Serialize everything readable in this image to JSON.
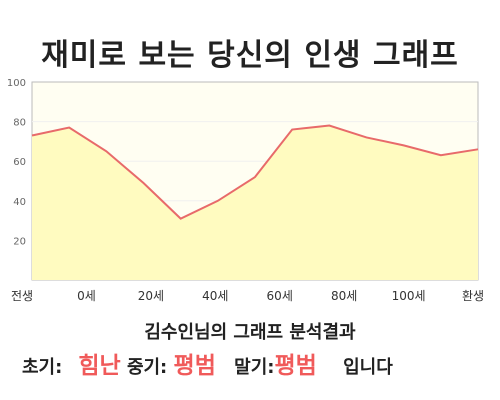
{
  "title": "재미로 보는 당신의 인생 그래프",
  "subtitle": "김수인님의 그래프 분석결과",
  "result": {
    "early_label": "초기:",
    "early_value": "힘난",
    "mid_label": "중기:",
    "mid_value": "평범",
    "late_label": "말기:",
    "late_value": "평범",
    "suffix": "입니다"
  },
  "colors": {
    "line": "#e86a6a",
    "fill": "#fffbc0",
    "plot_bg": "#fffef2",
    "grid": "#f0f0f0",
    "highlight": "#f05a5a"
  },
  "chart_data": {
    "type": "area",
    "title": "재미로 보는 당신의 인생 그래프",
    "x_tick_labels": [
      "전생",
      "0세",
      "20세",
      "40세",
      "60세",
      "80세",
      "100세",
      "환생"
    ],
    "y_ticks": [
      20,
      40,
      60,
      80,
      100
    ],
    "ylim": [
      0,
      100
    ],
    "x": [
      "전생",
      "0세",
      "10세",
      "20세",
      "30세",
      "40세",
      "50세",
      "60세",
      "70세",
      "80세",
      "90세",
      "100세",
      "환생"
    ],
    "values": [
      73,
      77,
      65,
      49,
      31,
      40,
      52,
      76,
      78,
      72,
      68,
      63,
      66
    ],
    "grid": true
  }
}
